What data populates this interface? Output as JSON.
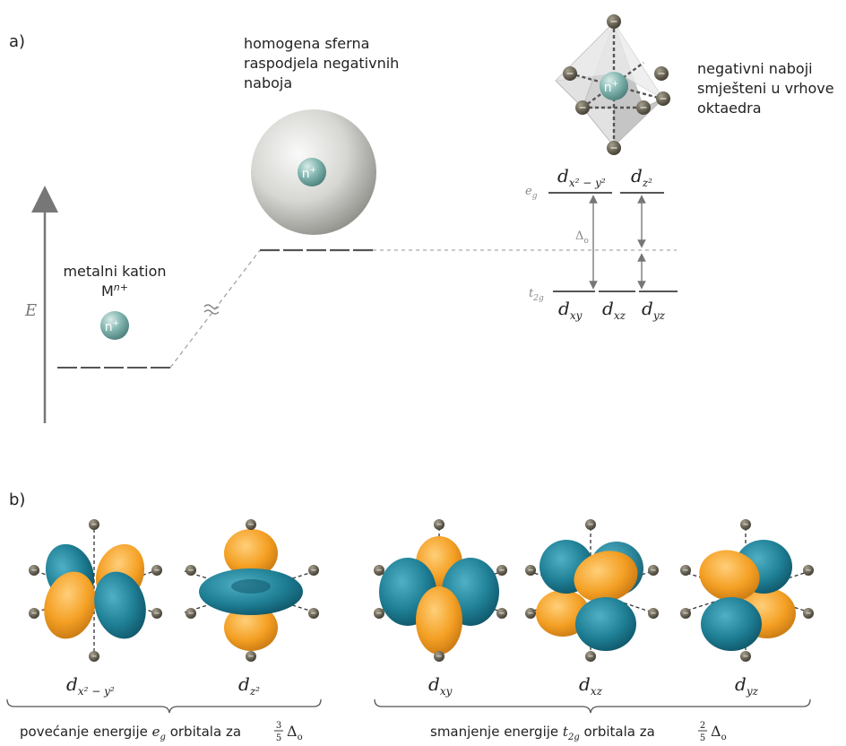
{
  "part_a": {
    "label": "a)",
    "energy_axis": "E",
    "cation": {
      "caption": "metalni kation",
      "formula_base": "M",
      "formula_sup": "n+",
      "ion_base": "n",
      "ion_sup": "+"
    },
    "sphere": {
      "caption": [
        "homogena sferna",
        "raspodjela negativnih",
        "naboja"
      ],
      "ion_base": "n",
      "ion_sup": "+"
    },
    "octahedron": {
      "caption": [
        "negativni naboji",
        "smješteni u vrhove",
        "oktaedra"
      ],
      "ion_base": "n",
      "ion_sup": "+",
      "ligand_symbol": "−"
    },
    "splitting": {
      "eg": {
        "base": "e",
        "sub": "g"
      },
      "t2g": {
        "base": "t",
        "sub": "2g"
      },
      "delta": {
        "base": "Δ",
        "sub": "o"
      },
      "eg_orbitals": [
        {
          "base": "d",
          "sub": "x² − y²"
        },
        {
          "base": "d",
          "sub": "z²"
        }
      ],
      "t2g_orbitals": [
        {
          "base": "d",
          "sub": "xy"
        },
        {
          "base": "d",
          "sub": "xz"
        },
        {
          "base": "d",
          "sub": "yz"
        }
      ]
    }
  },
  "part_b": {
    "label": "b)",
    "orbitals": [
      {
        "id": "dx2y2",
        "base": "d",
        "sub": "x² − y²"
      },
      {
        "id": "dz2",
        "base": "d",
        "sub": "z²"
      },
      {
        "id": "dxy",
        "base": "d",
        "sub": "xy"
      },
      {
        "id": "dxz",
        "base": "d",
        "sub": "xz"
      },
      {
        "id": "dyz",
        "base": "d",
        "sub": "yz"
      }
    ],
    "bracket_eg": {
      "pre": "povećanje energije ",
      "orb_base": "e",
      "orb_sub": "g",
      "mid": " orbitala za ",
      "frac_num": "3",
      "frac_den": "5",
      "delta_base": "Δ",
      "delta_sub": "o"
    },
    "bracket_t2g": {
      "pre": "smanjenje energije ",
      "orb_base": "t",
      "orb_sub": "2g",
      "mid": " orbitala za ",
      "frac_num": "2",
      "frac_den": "5",
      "delta_base": "Δ",
      "delta_sub": "o"
    }
  },
  "colors": {
    "lobe_orange": "#f4a024",
    "lobe_teal": "#1f7f95",
    "ion": "#7fb3ad",
    "ligand": "#5a5446",
    "level": "#555555",
    "dashed": "#aaaaaa"
  }
}
